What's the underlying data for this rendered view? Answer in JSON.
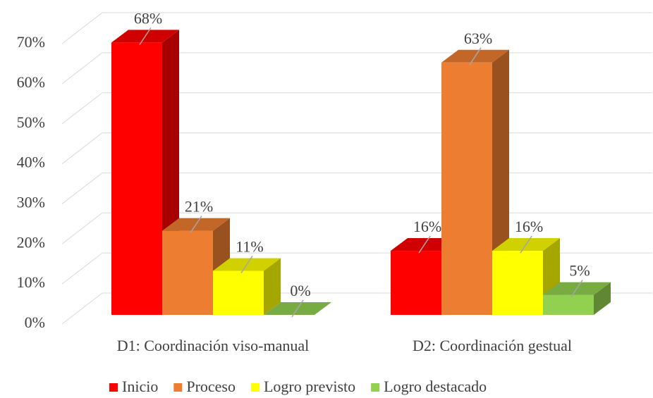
{
  "chart_data": {
    "type": "bar3d",
    "categories": [
      "D1: Coordinación viso-manual",
      "D2: Coordinación gestual"
    ],
    "series": [
      {
        "name": "Inicio",
        "color": "#ff0000",
        "values": [
          68,
          16
        ],
        "value_labels": [
          "68%",
          "16%"
        ]
      },
      {
        "name": "Proceso",
        "color": "#ed7d31",
        "values": [
          21,
          63
        ],
        "value_labels": [
          "21%",
          "63%"
        ]
      },
      {
        "name": "Logro previsto",
        "color": "#ffff00",
        "values": [
          11,
          16
        ],
        "value_labels": [
          "11%",
          "16%"
        ]
      },
      {
        "name": "Logro destacado",
        "color": "#92d050",
        "values": [
          0,
          5
        ],
        "value_labels": [
          "0%",
          "5%"
        ]
      }
    ],
    "ylim": [
      0,
      70
    ],
    "yticks": [
      {
        "value": 0,
        "label": "0%"
      },
      {
        "value": 10,
        "label": "10%"
      },
      {
        "value": 20,
        "label": "20%"
      },
      {
        "value": 30,
        "label": "30%"
      },
      {
        "value": 40,
        "label": "40%"
      },
      {
        "value": 50,
        "label": "50%"
      },
      {
        "value": 60,
        "label": "60%"
      },
      {
        "value": 70,
        "label": "70%"
      }
    ],
    "grid": true,
    "legend": "bottom"
  }
}
